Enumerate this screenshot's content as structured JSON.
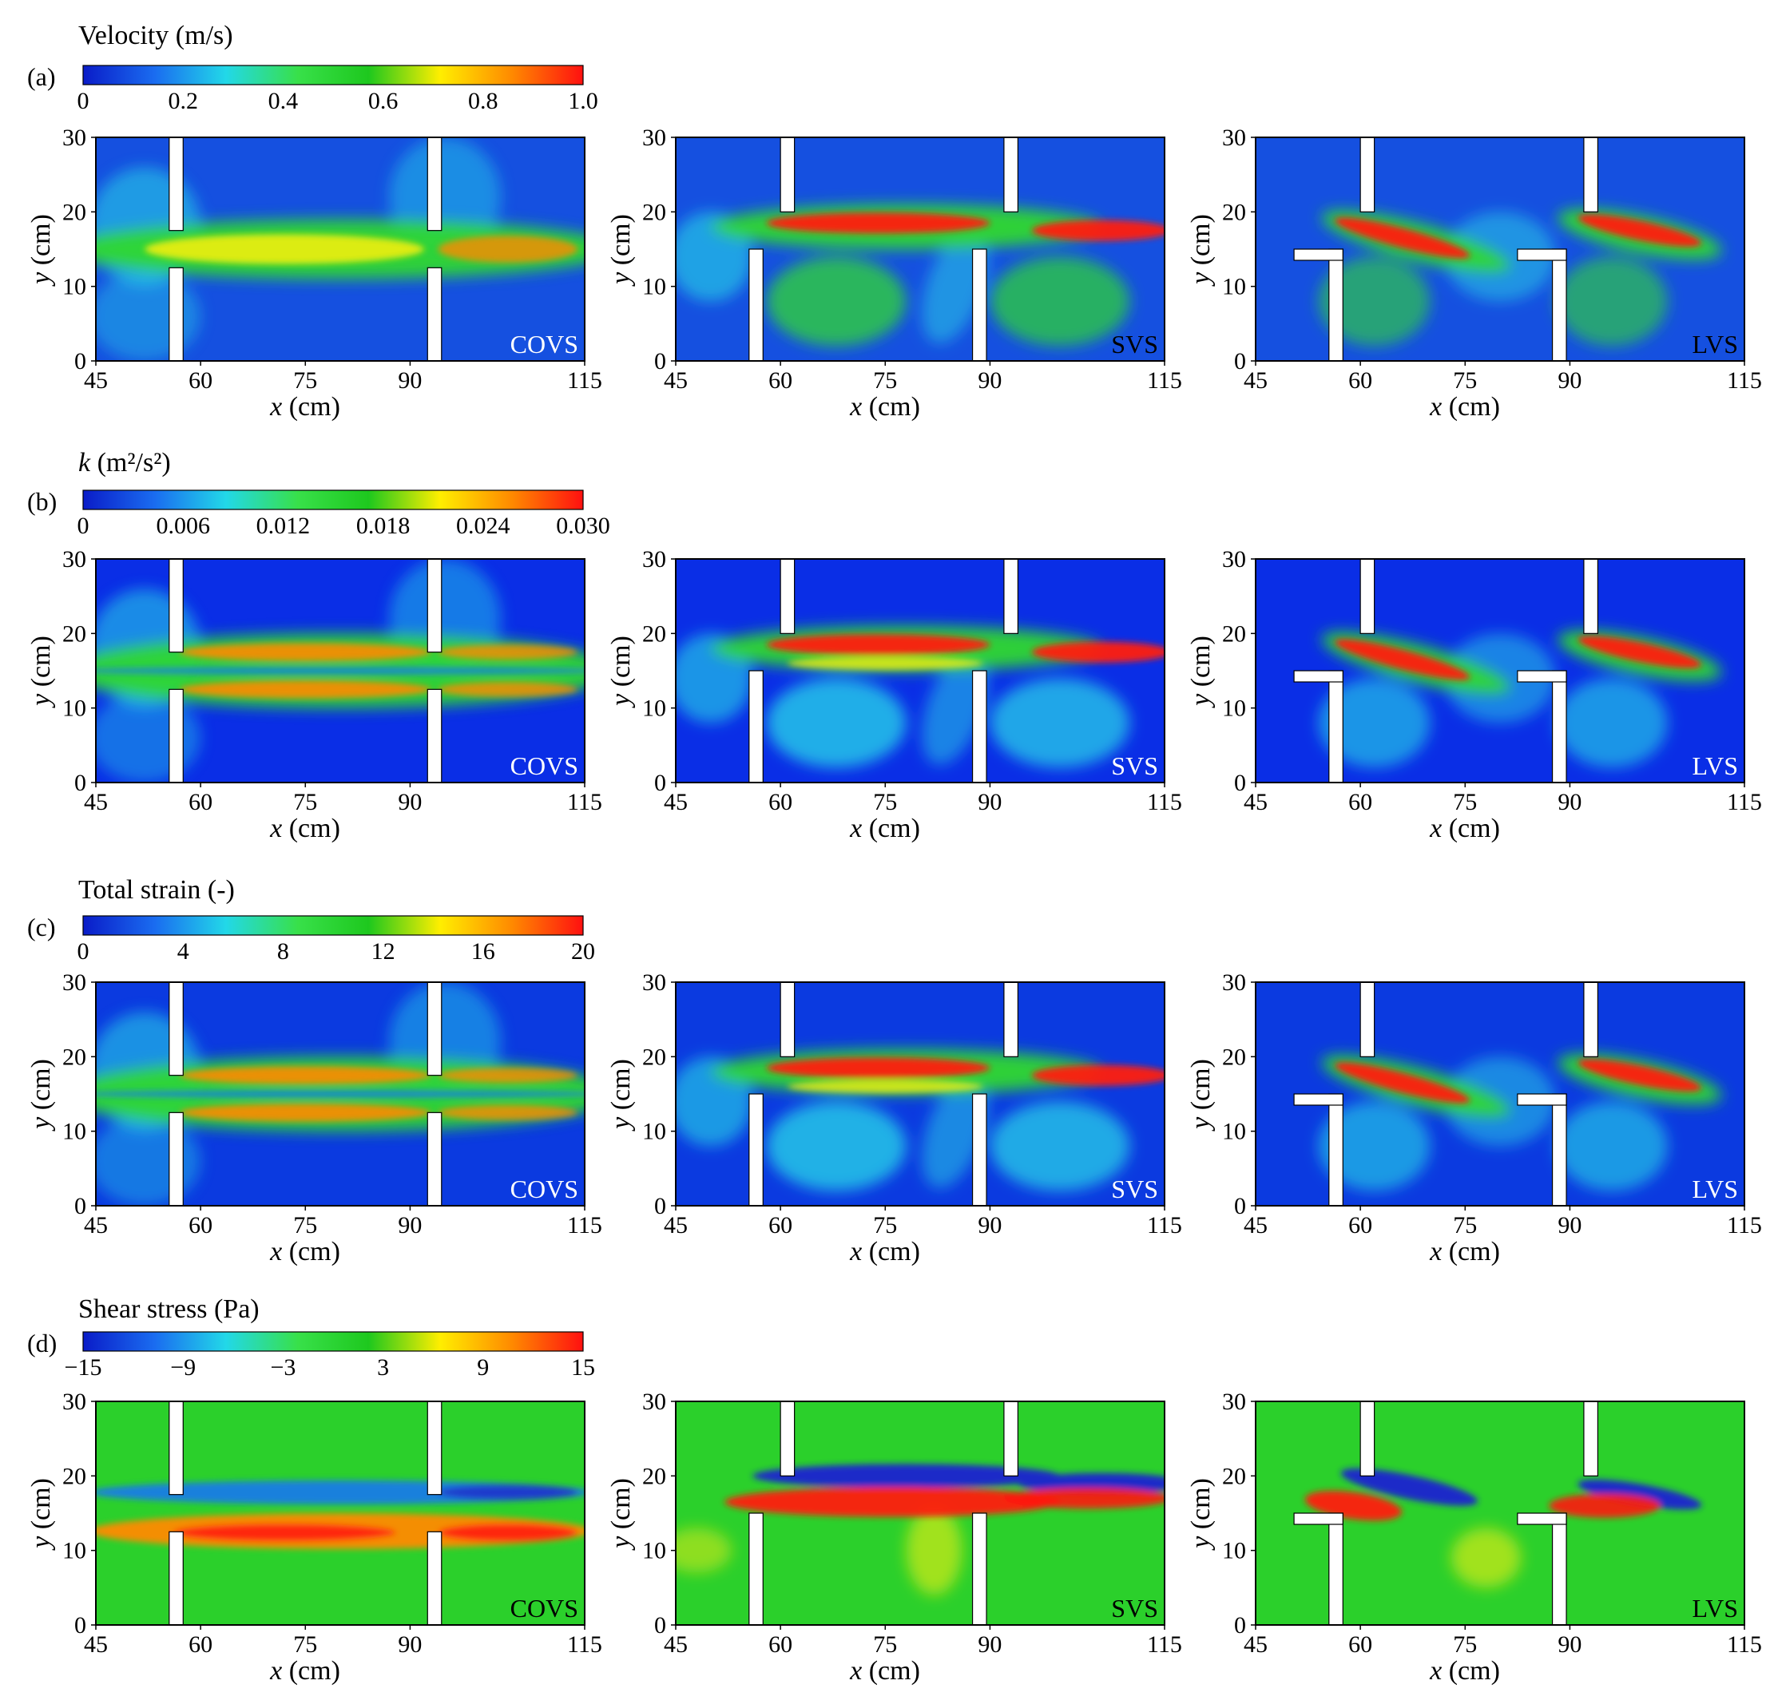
{
  "chart_data": {
    "type": "heatmap",
    "x_axis": {
      "label_var": "x",
      "label_unit": " (cm)",
      "range": [
        45,
        115
      ],
      "ticks": [
        45,
        60,
        75,
        90,
        115
      ]
    },
    "y_axis": {
      "label_var": "y",
      "label_unit": " (cm)",
      "range": [
        0,
        30
      ],
      "ticks": [
        0,
        10,
        20,
        30
      ]
    },
    "columns": [
      {
        "label": "COVS",
        "geometry": "central opening vertical slot"
      },
      {
        "label": "SVS",
        "geometry": "side vertical slot"
      },
      {
        "label": "LVS",
        "geometry": "L-shaped vertical slot"
      }
    ],
    "rows": [
      {
        "tag": "(a)",
        "title_var": "",
        "title": "Velocity (m/s)",
        "colorbar_ticks": [
          "0",
          "0.2",
          "0.4",
          "0.6",
          "0.8",
          "1.0"
        ],
        "range": [
          0,
          1.0
        ]
      },
      {
        "tag": "(b)",
        "title_var": "k",
        "title": " (m²/s²)",
        "colorbar_ticks": [
          "0",
          "0.006",
          "0.012",
          "0.018",
          "0.024",
          "0.030"
        ],
        "range": [
          0,
          0.03
        ]
      },
      {
        "tag": "(c)",
        "title_var": "",
        "title": "Total strain (-)",
        "colorbar_ticks": [
          "0",
          "4",
          "8",
          "12",
          "16",
          "20"
        ],
        "range": [
          0,
          20
        ]
      },
      {
        "tag": "(d)",
        "title_var": "",
        "title": "Shear stress (Pa)",
        "colorbar_ticks": [
          "−15",
          "−9",
          "−3",
          "3",
          "9",
          "15"
        ],
        "range": [
          -15,
          15
        ]
      }
    ],
    "colormap": [
      "#0a1cc8",
      "#1a6cf0",
      "#22d8e8",
      "#38e04a",
      "#1ec81e",
      "#ffee00",
      "#ff8a00",
      "#ff1010"
    ],
    "background_colors": {
      "Velocity": "#1550e0",
      "k": "#0a2ee6",
      "Total strain": "#0b3ae0",
      "Shear stress": "#2bd02b"
    }
  }
}
